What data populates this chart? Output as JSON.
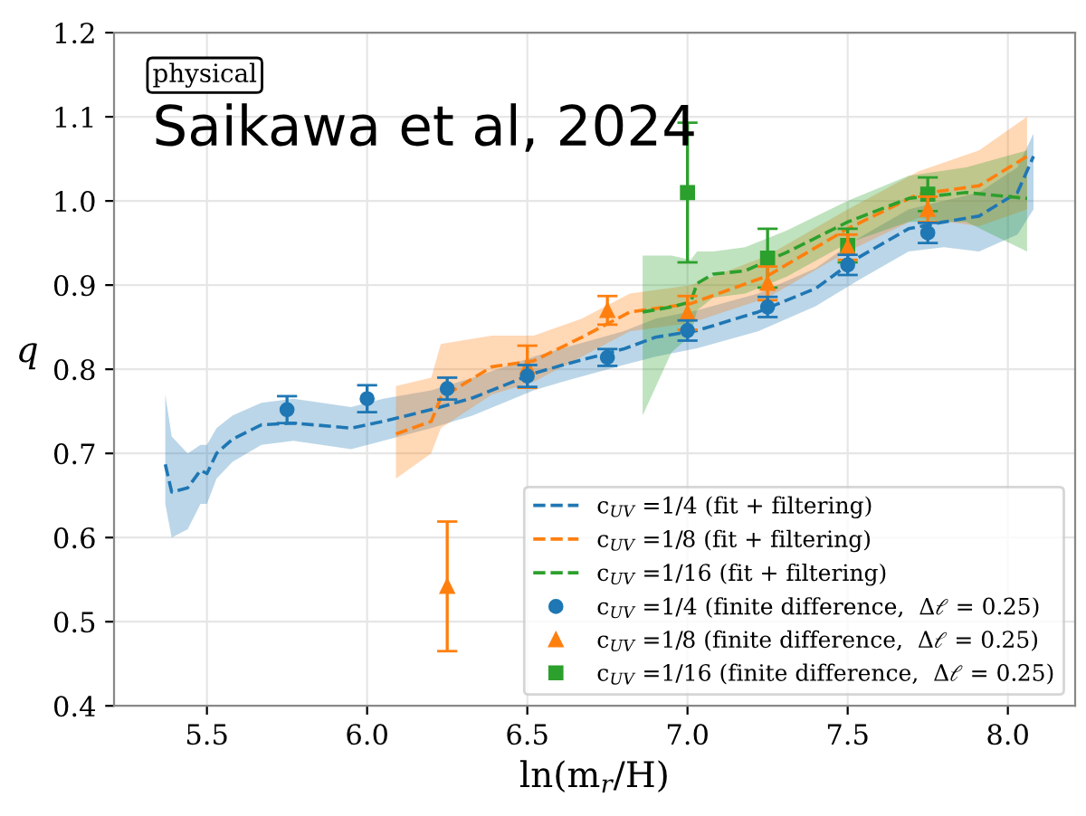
{
  "chart_data": {
    "type": "line",
    "xlabel": "ln(m$_{r}$/H)",
    "ylabel": "q",
    "xlim": [
      5.21,
      8.21
    ],
    "ylim": [
      0.4,
      1.2
    ],
    "xticks": [
      5.5,
      {
        "value": 6,
        "label": "6.0"
      },
      6.5,
      {
        "value": 7,
        "label": "7.0"
      },
      7.5,
      {
        "value": 8,
        "label": "8.0"
      }
    ],
    "yticks": [
      0.4,
      0.5,
      0.6,
      0.7,
      0.8,
      0.9,
      {
        "value": 1,
        "label": "1.0"
      },
      1.1,
      1.2
    ],
    "grid": true,
    "legend": "bottom right",
    "annotations": [
      "physical",
      "Saikawa et al, 2024"
    ],
    "series": [
      {
        "type": "line",
        "name": "c$_{UV}$ =1/4 (fit + filtering)",
        "color": "#1f77b4",
        "line_style": "dashed",
        "marker": "none",
        "x": [
          5.37,
          5.39,
          5.44,
          5.48,
          5.5,
          5.53,
          5.58,
          5.67,
          5.77,
          5.95,
          6.05,
          6.2,
          6.33,
          6.52,
          6.61,
          6.8,
          6.9,
          7.03,
          7.22,
          7.4,
          7.53,
          7.69,
          7.8,
          7.91,
          8.03,
          8.08
        ],
        "values": [
          0.687,
          0.654,
          0.659,
          0.68,
          0.676,
          0.7,
          0.717,
          0.734,
          0.736,
          0.73,
          0.738,
          0.752,
          0.766,
          0.795,
          0.805,
          0.824,
          0.838,
          0.846,
          0.868,
          0.896,
          0.932,
          0.967,
          0.975,
          0.982,
          1.01,
          1.053
        ],
        "lower": [
          0.64,
          0.6,
          0.61,
          0.64,
          0.64,
          0.67,
          0.69,
          0.71,
          0.715,
          0.705,
          0.715,
          0.73,
          0.745,
          0.775,
          0.785,
          0.805,
          0.815,
          0.825,
          0.845,
          0.875,
          0.905,
          0.94,
          0.945,
          0.94,
          0.96,
          0.99
        ],
        "upper": [
          0.77,
          0.72,
          0.7,
          0.71,
          0.71,
          0.73,
          0.745,
          0.76,
          0.765,
          0.755,
          0.765,
          0.775,
          0.79,
          0.815,
          0.825,
          0.845,
          0.86,
          0.87,
          0.89,
          0.92,
          0.955,
          0.99,
          1.0,
          1.01,
          1.04,
          1.08
        ]
      },
      {
        "type": "line",
        "name": "c$_{UV}$ =1/8 (fit + filtering)",
        "color": "#ff7f0e",
        "line_style": "dashed",
        "marker": "none",
        "x": [
          6.09,
          6.2,
          6.23,
          6.39,
          6.52,
          6.67,
          6.82,
          7.01,
          7.25,
          7.5,
          7.72,
          7.91,
          8.06
        ],
        "values": [
          0.723,
          0.738,
          0.766,
          0.803,
          0.81,
          0.838,
          0.868,
          0.878,
          0.911,
          0.967,
          1.008,
          1.018,
          1.053
        ],
        "lower": [
          0.67,
          0.7,
          0.73,
          0.77,
          0.785,
          0.815,
          0.845,
          0.855,
          0.885,
          0.94,
          0.98,
          0.97,
          0.99
        ],
        "upper": [
          0.78,
          0.79,
          0.83,
          0.84,
          0.84,
          0.86,
          0.89,
          0.9,
          0.935,
          0.99,
          1.035,
          1.06,
          1.1
        ]
      },
      {
        "type": "line",
        "name": "c$_{UV}$ =1/16 (fit + filtering)",
        "color": "#2ca02c",
        "line_style": "dashed",
        "marker": "none",
        "x": [
          6.86,
          6.95,
          7.01,
          7.03,
          7.08,
          7.18,
          7.31,
          7.5,
          7.69,
          7.87,
          8.06
        ],
        "values": [
          0.868,
          0.874,
          0.88,
          0.902,
          0.913,
          0.917,
          0.939,
          0.975,
          1.003,
          1.01,
          1.003
        ],
        "lower": [
          0.745,
          0.82,
          0.84,
          0.87,
          0.885,
          0.89,
          0.91,
          0.95,
          0.975,
          0.975,
          0.94
        ],
        "upper": [
          0.935,
          0.935,
          0.93,
          0.94,
          0.94,
          0.945,
          0.965,
          1.0,
          1.03,
          1.04,
          1.06
        ]
      },
      {
        "type": "scatter",
        "name": "c$_{UV}$ =1/4 (finite difference,  Δℓ = 0.25)",
        "color": "#1f77b4",
        "marker": "circle",
        "x": [
          5.75,
          6.0,
          6.25,
          6.5,
          6.75,
          7.0,
          7.25,
          7.5,
          7.75
        ],
        "values": [
          0.752,
          0.765,
          0.777,
          0.792,
          0.814,
          0.846,
          0.874,
          0.924,
          0.962
        ],
        "errors": [
          0.016,
          0.016,
          0.013,
          0.013,
          0.01,
          0.012,
          0.012,
          0.012,
          0.012
        ]
      },
      {
        "type": "scatter",
        "name": "c$_{UV}$ =1/8 (finite difference,  Δℓ = 0.25)",
        "color": "#ff7f0e",
        "marker": "triangle",
        "x": [
          6.25,
          6.5,
          6.75,
          7.0,
          7.25,
          7.5,
          7.75
        ],
        "values": [
          0.542,
          0.803,
          0.87,
          0.867,
          0.902,
          0.945,
          0.99
        ],
        "errors": [
          0.077,
          0.025,
          0.017,
          0.02,
          0.02,
          0.015,
          0.015
        ]
      },
      {
        "type": "scatter",
        "name": "c$_{UV}$ =1/16 (finite difference,  Δℓ = 0.25)",
        "color": "#2ca02c",
        "marker": "square",
        "x": [
          7.0,
          7.25,
          7.5,
          7.75
        ],
        "values": [
          1.01,
          0.932,
          0.947,
          1.008
        ],
        "errors": [
          0.083,
          0.035,
          0.02,
          0.02
        ]
      }
    ]
  }
}
